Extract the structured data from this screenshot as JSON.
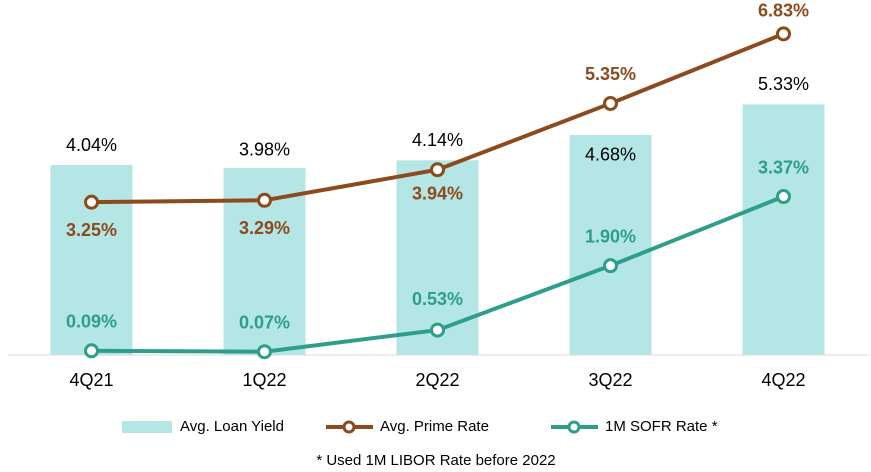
{
  "chart_data": {
    "type": "bar",
    "categories": [
      "4Q21",
      "1Q22",
      "2Q22",
      "3Q22",
      "4Q22"
    ],
    "ylim": [
      0,
      7.55
    ],
    "series": [
      {
        "name": "Avg. Loan Yield",
        "type": "bar",
        "color": "#b3e6e5",
        "values": [
          4.04,
          3.98,
          4.14,
          4.68,
          5.33
        ],
        "value_labels": [
          "4.04%",
          "3.98%",
          "4.14%",
          "4.68%",
          "5.33%"
        ]
      },
      {
        "name": "Avg. Prime Rate",
        "type": "line",
        "color": "#8c4a1d",
        "values": [
          3.25,
          3.29,
          3.94,
          5.35,
          6.83
        ],
        "value_labels": [
          "3.25%",
          "3.29%",
          "3.94%",
          "5.35%",
          "6.83%"
        ]
      },
      {
        "name": "1M SOFR Rate *",
        "type": "line",
        "color": "#2e9e8c",
        "values": [
          0.09,
          0.07,
          0.53,
          1.9,
          3.37
        ],
        "value_labels": [
          "0.09%",
          "0.07%",
          "0.53%",
          "1.90%",
          "3.37%"
        ]
      }
    ],
    "footnote": "* Used 1M LIBOR Rate before 2022"
  }
}
